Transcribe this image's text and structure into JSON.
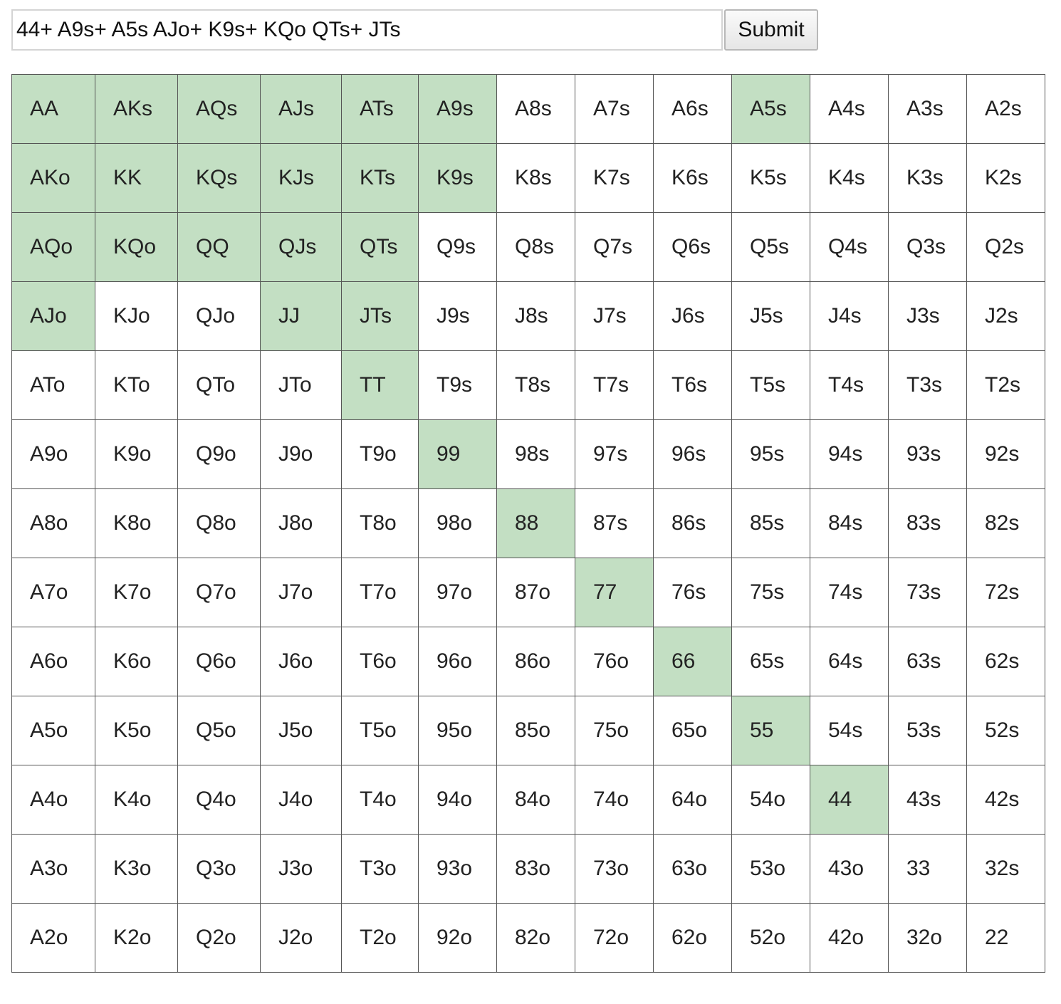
{
  "form": {
    "range_value": "44+ A9s+ A5s AJo+ K9s+ KQo QTs+ JTs",
    "submit_label": "Submit"
  },
  "grid": {
    "selected_color": "#c3dfc3",
    "rows": [
      {
        "cells": [
          {
            "label": "AA",
            "selected": true
          },
          {
            "label": "AKs",
            "selected": true
          },
          {
            "label": "AQs",
            "selected": true
          },
          {
            "label": "AJs",
            "selected": true
          },
          {
            "label": "ATs",
            "selected": true
          },
          {
            "label": "A9s",
            "selected": true
          },
          {
            "label": "A8s",
            "selected": false
          },
          {
            "label": "A7s",
            "selected": false
          },
          {
            "label": "A6s",
            "selected": false
          },
          {
            "label": "A5s",
            "selected": true
          },
          {
            "label": "A4s",
            "selected": false
          },
          {
            "label": "A3s",
            "selected": false
          },
          {
            "label": "A2s",
            "selected": false
          }
        ]
      },
      {
        "cells": [
          {
            "label": "AKo",
            "selected": true
          },
          {
            "label": "KK",
            "selected": true
          },
          {
            "label": "KQs",
            "selected": true
          },
          {
            "label": "KJs",
            "selected": true
          },
          {
            "label": "KTs",
            "selected": true
          },
          {
            "label": "K9s",
            "selected": true
          },
          {
            "label": "K8s",
            "selected": false
          },
          {
            "label": "K7s",
            "selected": false
          },
          {
            "label": "K6s",
            "selected": false
          },
          {
            "label": "K5s",
            "selected": false
          },
          {
            "label": "K4s",
            "selected": false
          },
          {
            "label": "K3s",
            "selected": false
          },
          {
            "label": "K2s",
            "selected": false
          }
        ]
      },
      {
        "cells": [
          {
            "label": "AQo",
            "selected": true
          },
          {
            "label": "KQo",
            "selected": true
          },
          {
            "label": "QQ",
            "selected": true
          },
          {
            "label": "QJs",
            "selected": true
          },
          {
            "label": "QTs",
            "selected": true
          },
          {
            "label": "Q9s",
            "selected": false
          },
          {
            "label": "Q8s",
            "selected": false
          },
          {
            "label": "Q7s",
            "selected": false
          },
          {
            "label": "Q6s",
            "selected": false
          },
          {
            "label": "Q5s",
            "selected": false
          },
          {
            "label": "Q4s",
            "selected": false
          },
          {
            "label": "Q3s",
            "selected": false
          },
          {
            "label": "Q2s",
            "selected": false
          }
        ]
      },
      {
        "cells": [
          {
            "label": "AJo",
            "selected": true
          },
          {
            "label": "KJo",
            "selected": false
          },
          {
            "label": "QJo",
            "selected": false
          },
          {
            "label": "JJ",
            "selected": true
          },
          {
            "label": "JTs",
            "selected": true
          },
          {
            "label": "J9s",
            "selected": false
          },
          {
            "label": "J8s",
            "selected": false
          },
          {
            "label": "J7s",
            "selected": false
          },
          {
            "label": "J6s",
            "selected": false
          },
          {
            "label": "J5s",
            "selected": false
          },
          {
            "label": "J4s",
            "selected": false
          },
          {
            "label": "J3s",
            "selected": false
          },
          {
            "label": "J2s",
            "selected": false
          }
        ]
      },
      {
        "cells": [
          {
            "label": "ATo",
            "selected": false
          },
          {
            "label": "KTo",
            "selected": false
          },
          {
            "label": "QTo",
            "selected": false
          },
          {
            "label": "JTo",
            "selected": false
          },
          {
            "label": "TT",
            "selected": true
          },
          {
            "label": "T9s",
            "selected": false
          },
          {
            "label": "T8s",
            "selected": false
          },
          {
            "label": "T7s",
            "selected": false
          },
          {
            "label": "T6s",
            "selected": false
          },
          {
            "label": "T5s",
            "selected": false
          },
          {
            "label": "T4s",
            "selected": false
          },
          {
            "label": "T3s",
            "selected": false
          },
          {
            "label": "T2s",
            "selected": false
          }
        ]
      },
      {
        "cells": [
          {
            "label": "A9o",
            "selected": false
          },
          {
            "label": "K9o",
            "selected": false
          },
          {
            "label": "Q9o",
            "selected": false
          },
          {
            "label": "J9o",
            "selected": false
          },
          {
            "label": "T9o",
            "selected": false
          },
          {
            "label": "99",
            "selected": true
          },
          {
            "label": "98s",
            "selected": false
          },
          {
            "label": "97s",
            "selected": false
          },
          {
            "label": "96s",
            "selected": false
          },
          {
            "label": "95s",
            "selected": false
          },
          {
            "label": "94s",
            "selected": false
          },
          {
            "label": "93s",
            "selected": false
          },
          {
            "label": "92s",
            "selected": false
          }
        ]
      },
      {
        "cells": [
          {
            "label": "A8o",
            "selected": false
          },
          {
            "label": "K8o",
            "selected": false
          },
          {
            "label": "Q8o",
            "selected": false
          },
          {
            "label": "J8o",
            "selected": false
          },
          {
            "label": "T8o",
            "selected": false
          },
          {
            "label": "98o",
            "selected": false
          },
          {
            "label": "88",
            "selected": true
          },
          {
            "label": "87s",
            "selected": false
          },
          {
            "label": "86s",
            "selected": false
          },
          {
            "label": "85s",
            "selected": false
          },
          {
            "label": "84s",
            "selected": false
          },
          {
            "label": "83s",
            "selected": false
          },
          {
            "label": "82s",
            "selected": false
          }
        ]
      },
      {
        "cells": [
          {
            "label": "A7o",
            "selected": false
          },
          {
            "label": "K7o",
            "selected": false
          },
          {
            "label": "Q7o",
            "selected": false
          },
          {
            "label": "J7o",
            "selected": false
          },
          {
            "label": "T7o",
            "selected": false
          },
          {
            "label": "97o",
            "selected": false
          },
          {
            "label": "87o",
            "selected": false
          },
          {
            "label": "77",
            "selected": true
          },
          {
            "label": "76s",
            "selected": false
          },
          {
            "label": "75s",
            "selected": false
          },
          {
            "label": "74s",
            "selected": false
          },
          {
            "label": "73s",
            "selected": false
          },
          {
            "label": "72s",
            "selected": false
          }
        ]
      },
      {
        "cells": [
          {
            "label": "A6o",
            "selected": false
          },
          {
            "label": "K6o",
            "selected": false
          },
          {
            "label": "Q6o",
            "selected": false
          },
          {
            "label": "J6o",
            "selected": false
          },
          {
            "label": "T6o",
            "selected": false
          },
          {
            "label": "96o",
            "selected": false
          },
          {
            "label": "86o",
            "selected": false
          },
          {
            "label": "76o",
            "selected": false
          },
          {
            "label": "66",
            "selected": true
          },
          {
            "label": "65s",
            "selected": false
          },
          {
            "label": "64s",
            "selected": false
          },
          {
            "label": "63s",
            "selected": false
          },
          {
            "label": "62s",
            "selected": false
          }
        ]
      },
      {
        "cells": [
          {
            "label": "A5o",
            "selected": false
          },
          {
            "label": "K5o",
            "selected": false
          },
          {
            "label": "Q5o",
            "selected": false
          },
          {
            "label": "J5o",
            "selected": false
          },
          {
            "label": "T5o",
            "selected": false
          },
          {
            "label": "95o",
            "selected": false
          },
          {
            "label": "85o",
            "selected": false
          },
          {
            "label": "75o",
            "selected": false
          },
          {
            "label": "65o",
            "selected": false
          },
          {
            "label": "55",
            "selected": true
          },
          {
            "label": "54s",
            "selected": false
          },
          {
            "label": "53s",
            "selected": false
          },
          {
            "label": "52s",
            "selected": false
          }
        ]
      },
      {
        "cells": [
          {
            "label": "A4o",
            "selected": false
          },
          {
            "label": "K4o",
            "selected": false
          },
          {
            "label": "Q4o",
            "selected": false
          },
          {
            "label": "J4o",
            "selected": false
          },
          {
            "label": "T4o",
            "selected": false
          },
          {
            "label": "94o",
            "selected": false
          },
          {
            "label": "84o",
            "selected": false
          },
          {
            "label": "74o",
            "selected": false
          },
          {
            "label": "64o",
            "selected": false
          },
          {
            "label": "54o",
            "selected": false
          },
          {
            "label": "44",
            "selected": true
          },
          {
            "label": "43s",
            "selected": false
          },
          {
            "label": "42s",
            "selected": false
          }
        ]
      },
      {
        "cells": [
          {
            "label": "A3o",
            "selected": false
          },
          {
            "label": "K3o",
            "selected": false
          },
          {
            "label": "Q3o",
            "selected": false
          },
          {
            "label": "J3o",
            "selected": false
          },
          {
            "label": "T3o",
            "selected": false
          },
          {
            "label": "93o",
            "selected": false
          },
          {
            "label": "83o",
            "selected": false
          },
          {
            "label": "73o",
            "selected": false
          },
          {
            "label": "63o",
            "selected": false
          },
          {
            "label": "53o",
            "selected": false
          },
          {
            "label": "43o",
            "selected": false
          },
          {
            "label": "33",
            "selected": false
          },
          {
            "label": "32s",
            "selected": false
          }
        ]
      },
      {
        "cells": [
          {
            "label": "A2o",
            "selected": false
          },
          {
            "label": "K2o",
            "selected": false
          },
          {
            "label": "Q2o",
            "selected": false
          },
          {
            "label": "J2o",
            "selected": false
          },
          {
            "label": "T2o",
            "selected": false
          },
          {
            "label": "92o",
            "selected": false
          },
          {
            "label": "82o",
            "selected": false
          },
          {
            "label": "72o",
            "selected": false
          },
          {
            "label": "62o",
            "selected": false
          },
          {
            "label": "52o",
            "selected": false
          },
          {
            "label": "42o",
            "selected": false
          },
          {
            "label": "32o",
            "selected": false
          },
          {
            "label": "22",
            "selected": false
          }
        ]
      }
    ]
  }
}
